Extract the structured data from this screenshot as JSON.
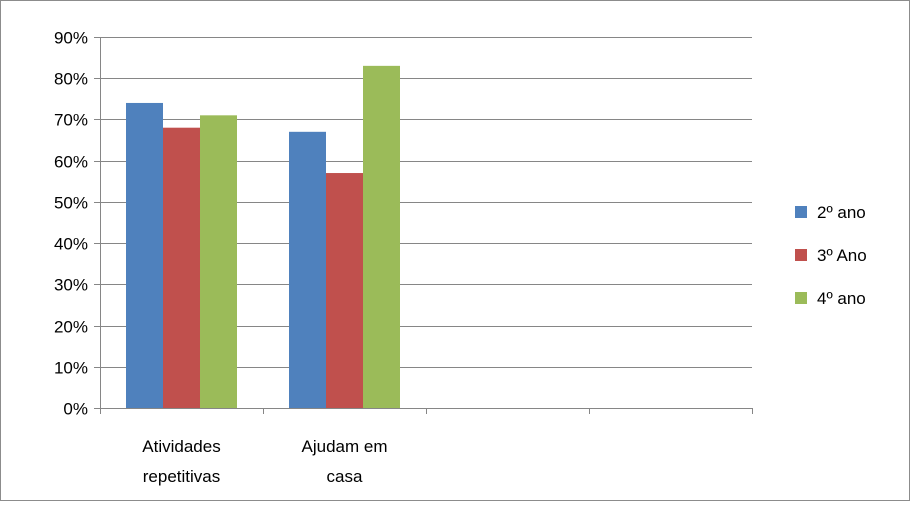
{
  "chart_data": {
    "type": "bar",
    "categories": [
      [
        "Atividades",
        "repetitivas"
      ],
      [
        "Ajudam em",
        "casa"
      ],
      [],
      []
    ],
    "series": [
      {
        "name": "2º ano",
        "values": [
          74,
          67,
          null,
          null
        ],
        "color": "#4F81BD"
      },
      {
        "name": "3º Ano",
        "values": [
          68,
          57,
          null,
          null
        ],
        "color": "#C0504D"
      },
      {
        "name": "4º ano",
        "values": [
          71,
          83,
          null,
          null
        ],
        "color": "#9BBB59"
      }
    ],
    "y_ticks": [
      "0%",
      "10%",
      "20%",
      "30%",
      "40%",
      "50%",
      "60%",
      "70%",
      "80%",
      "90%"
    ],
    "ylim": [
      0,
      90
    ],
    "y_unit": "%",
    "grid": true,
    "legend_position": "right"
  }
}
